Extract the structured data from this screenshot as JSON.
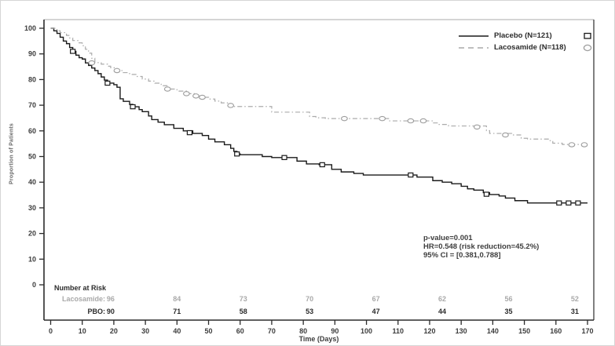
{
  "figure": {
    "legend": [
      {
        "label": "Placebo (N=121)",
        "marker": "square",
        "line_style": "solid",
        "color": "#1a1a1a"
      },
      {
        "label": "Lacosamide (N=118)",
        "marker": "circle",
        "line_style": "dash-dot",
        "color": "#a9a9a9"
      }
    ],
    "annotation": {
      "line1": "p-value=0.001",
      "line2": "HR=0.548 (risk reduction=45.2%)",
      "line3": "95% CI = [0.381,0.788]"
    },
    "risk_table": {
      "title": "Number at Risk",
      "value_days": [
        19,
        40,
        61,
        82,
        103,
        124,
        145,
        166
      ],
      "rows": [
        {
          "label": "Lacosamide:",
          "values": [
            96,
            84,
            73,
            70,
            67,
            62,
            56,
            52
          ],
          "color": "#a9a9a9"
        },
        {
          "label": "PBO:",
          "values": [
            90,
            71,
            58,
            53,
            47,
            44,
            35,
            31
          ],
          "color": "#2b2b2b"
        }
      ]
    }
  },
  "chart_data": {
    "type": "line",
    "subtype": "kaplan-meier-step",
    "title": "",
    "xlabel": "Time (Days)",
    "ylabel": "Proportion of Patients",
    "xlim": [
      0,
      170
    ],
    "ylim": [
      0,
      100
    ],
    "xticks": [
      0,
      10,
      20,
      30,
      40,
      50,
      60,
      70,
      80,
      90,
      100,
      110,
      120,
      130,
      140,
      150,
      160,
      170
    ],
    "yticks": [
      0,
      10,
      20,
      30,
      40,
      50,
      60,
      70,
      80,
      90,
      100
    ],
    "grid": false,
    "legend_position": "top-right",
    "series": [
      {
        "name": "Placebo (N=121)",
        "n": 121,
        "color": "#1a1a1a",
        "line_style": "solid",
        "marker": "square",
        "steps": [
          [
            0,
            100
          ],
          [
            1,
            99
          ],
          [
            2,
            98
          ],
          [
            3,
            96.5
          ],
          [
            4,
            95
          ],
          [
            5,
            94
          ],
          [
            6,
            92.5
          ],
          [
            7,
            91
          ],
          [
            8,
            89.5
          ],
          [
            9,
            88.5
          ],
          [
            10,
            88
          ],
          [
            11,
            86.5
          ],
          [
            12,
            85.5
          ],
          [
            13,
            84.5
          ],
          [
            14,
            83.5
          ],
          [
            15,
            82.3
          ],
          [
            16,
            81
          ],
          [
            17,
            79.8
          ],
          [
            18,
            78.6
          ],
          [
            20,
            78
          ],
          [
            21,
            77
          ],
          [
            22,
            72.5
          ],
          [
            23,
            71.5
          ],
          [
            25,
            70.3
          ],
          [
            26,
            69.4
          ],
          [
            28,
            68.3
          ],
          [
            29,
            67.5
          ],
          [
            31,
            65.8
          ],
          [
            32,
            64.4
          ],
          [
            34,
            63.4
          ],
          [
            36,
            62.4
          ],
          [
            39,
            61
          ],
          [
            42,
            60
          ],
          [
            45,
            59
          ],
          [
            48,
            58.2
          ],
          [
            50,
            56.8
          ],
          [
            52,
            55.7
          ],
          [
            55,
            54.6
          ],
          [
            57,
            53.2
          ],
          [
            58,
            52
          ],
          [
            59,
            51
          ],
          [
            60,
            50.7
          ],
          [
            67,
            50
          ],
          [
            70,
            49.6
          ],
          [
            78,
            48.2
          ],
          [
            81,
            47.1
          ],
          [
            85,
            46.8
          ],
          [
            89,
            45
          ],
          [
            92,
            44
          ],
          [
            96,
            43.4
          ],
          [
            99,
            42.8
          ],
          [
            116,
            42
          ],
          [
            121,
            40.6
          ],
          [
            124,
            40
          ],
          [
            127,
            39.4
          ],
          [
            130,
            38.4
          ],
          [
            132,
            37.4
          ],
          [
            134,
            36.9
          ],
          [
            137,
            35.9
          ],
          [
            139,
            35.2
          ],
          [
            142,
            34.6
          ],
          [
            144,
            33.8
          ],
          [
            147,
            32.8
          ],
          [
            151,
            31.9
          ],
          [
            170,
            31.9
          ]
        ],
        "censor_marks": [
          [
            7,
            91
          ],
          [
            18,
            78.6
          ],
          [
            26,
            69.4
          ],
          [
            44,
            59.3
          ],
          [
            59,
            51
          ],
          [
            74,
            49.6
          ],
          [
            86,
            46.8
          ],
          [
            114,
            42.8
          ],
          [
            138,
            35.3
          ],
          [
            161,
            31.9
          ],
          [
            164,
            31.9
          ],
          [
            167,
            31.9
          ]
        ]
      },
      {
        "name": "Lacosamide (N=118)",
        "n": 118,
        "color": "#ababab",
        "line_style": "dash-dot",
        "marker": "circle",
        "steps": [
          [
            0,
            100
          ],
          [
            2,
            99
          ],
          [
            3,
            98.3
          ],
          [
            5,
            97.2
          ],
          [
            6,
            96.2
          ],
          [
            7,
            95.2
          ],
          [
            9,
            94.3
          ],
          [
            10,
            93.2
          ],
          [
            11,
            91.8
          ],
          [
            12,
            90.3
          ],
          [
            13,
            88.3
          ],
          [
            14,
            86.6
          ],
          [
            16,
            86
          ],
          [
            18,
            85.2
          ],
          [
            19,
            84.6
          ],
          [
            21,
            83.5
          ],
          [
            23,
            82.7
          ],
          [
            25,
            82
          ],
          [
            27,
            81.2
          ],
          [
            29,
            80.2
          ],
          [
            31,
            79.4
          ],
          [
            33,
            78.6
          ],
          [
            35,
            77.6
          ],
          [
            37,
            76.3
          ],
          [
            40,
            75.5
          ],
          [
            43,
            74.5
          ],
          [
            46,
            73.6
          ],
          [
            48,
            73.1
          ],
          [
            50,
            72.4
          ],
          [
            52,
            71.6
          ],
          [
            54,
            70.9
          ],
          [
            56,
            70.1
          ],
          [
            58,
            69.5
          ],
          [
            70,
            67.3
          ],
          [
            82,
            65.6
          ],
          [
            84,
            65.1
          ],
          [
            87,
            64.8
          ],
          [
            107,
            63.9
          ],
          [
            121,
            63.1
          ],
          [
            123,
            62.5
          ],
          [
            126,
            61.9
          ],
          [
            138,
            60.1
          ],
          [
            139,
            59
          ],
          [
            146,
            58.4
          ],
          [
            149,
            57.1
          ],
          [
            151,
            56.8
          ],
          [
            158,
            56.2
          ],
          [
            159,
            55.2
          ],
          [
            162,
            54.7
          ],
          [
            170,
            54.6
          ]
        ],
        "censor_marks": [
          [
            13,
            86.5
          ],
          [
            21,
            83.5
          ],
          [
            37,
            76.3
          ],
          [
            43,
            74.5
          ],
          [
            46,
            73.6
          ],
          [
            48,
            73.1
          ],
          [
            57,
            69.9
          ],
          [
            93,
            64.8
          ],
          [
            105,
            64.8
          ],
          [
            114,
            63.9
          ],
          [
            118,
            63.9
          ],
          [
            135,
            61.5
          ],
          [
            144,
            58.4
          ],
          [
            165,
            54.6
          ],
          [
            169,
            54.6
          ]
        ]
      }
    ],
    "stats_annotation": [
      "p-value=0.001",
      "HR=0.548 (risk reduction=45.2%)",
      "95% CI = [0.381,0.788]"
    ]
  }
}
